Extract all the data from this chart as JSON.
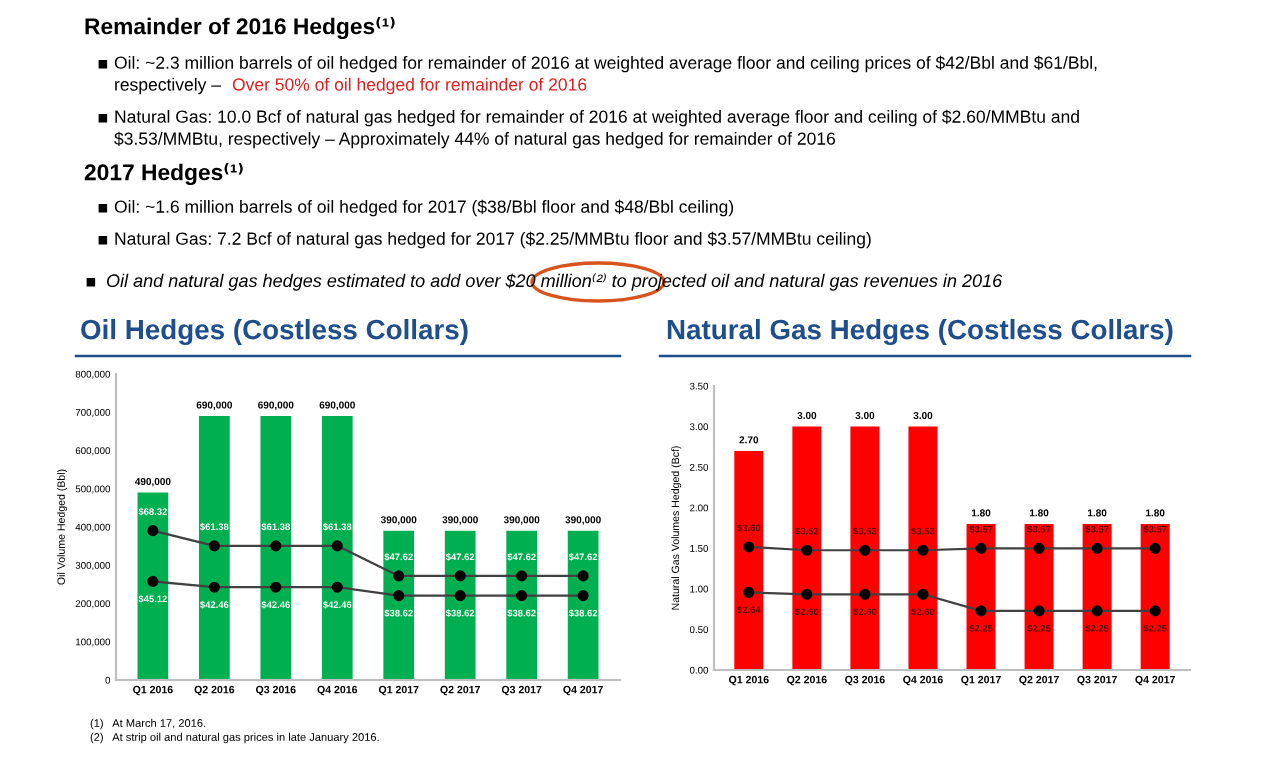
{
  "chart_data": [
    {
      "type": "other",
      "annotations": [
        "Remainder of 2016 Hedges⁽¹⁾",
        "Oil: ~2.3 million barrels of oil hedged for remainder of 2016 at weighted average floor and ceiling prices of $42/Bbl and $61/Bbl,",
        "respectively – ",
        "Over 50% of oil hedged for remainder of 2016",
        "Natural Gas: 10.0 Bcf of natural gas hedged for remainder of 2016 at weighted average floor and ceiling of $2.60/MMBtu and",
        "$3.53/MMBtu, respectively – Approximately 44% of natural gas hedged for remainder of 2016",
        "2017 Hedges⁽¹⁾",
        "Oil: ~1.6 million barrels of oil hedged for 2017 ($38/Bbl floor and $48/Bbl ceiling)",
        "Natural Gas: 7.2 Bcf of natural gas hedged for 2017 ($2.25/MMBtu floor and $3.57/MMBtu ceiling)",
        "Oil and natural gas hedges estimated to add over $20 million⁽²⁾ to projected oil and natural gas revenues in 2016"
      ]
    },
    {
      "type": "bar",
      "title": "Oil Hedges (Costless Collars)",
      "ylabel": "Oil Volume Hedged (Bbl)",
      "categories": [
        "Q1 2016",
        "Q2 2016",
        "Q3 2016",
        "Q4 2016",
        "Q1 2017",
        "Q2 2017",
        "Q3 2017",
        "Q4 2017"
      ],
      "ylim": [
        0,
        800000
      ],
      "yticks": [
        0,
        {
          "value": 100000,
          "label": "100,000"
        },
        {
          "value": 200000,
          "label": "200,000"
        },
        {
          "value": 300000,
          "label": "300,000"
        },
        {
          "value": 400000,
          "label": "400,000"
        },
        {
          "value": 500000,
          "label": "500,000"
        },
        {
          "value": 600000,
          "label": "600,000"
        },
        {
          "value": 700000,
          "label": "700,000"
        },
        {
          "value": 800000,
          "label": "800,000"
        }
      ],
      "y2lim": [
        0,
        140
      ],
      "grid": false,
      "series": [
        {
          "type": "bar",
          "color": "#00b050",
          "values": [
            490000,
            690000,
            690000,
            690000,
            390000,
            390000,
            390000,
            390000
          ],
          "value_labels": [
            "490,000",
            "690,000",
            "690,000",
            "690,000",
            "390,000",
            "390,000",
            "390,000",
            "390,000"
          ]
        },
        {
          "type": "line",
          "axis": "y2",
          "color": "#404040",
          "marker": "circle",
          "line_style": "solid",
          "values": [
            68.32,
            61.38,
            61.38,
            61.38,
            47.62,
            47.62,
            47.62,
            47.62
          ],
          "value_labels": [
            "$68.32",
            "$61.38",
            "$61.38",
            "$61.38",
            "$47.62",
            "$47.62",
            "$47.62",
            "$47.62"
          ]
        },
        {
          "type": "line",
          "axis": "y2",
          "color": "#404040",
          "marker": "circle",
          "line_style": "solid",
          "values": [
            45.12,
            42.46,
            42.46,
            42.46,
            38.62,
            38.62,
            38.62,
            38.62
          ],
          "value_labels": [
            "$45.12",
            "$42.46",
            "$42.46",
            "$42.46",
            "$38.62",
            "$38.62",
            "$38.62",
            "$38.62"
          ]
        }
      ],
      "annotations": [
        "(1)   At March 17, 2016.",
        "(2)   At strip oil and natural gas prices in late January 2016."
      ]
    },
    {
      "type": "bar",
      "title": "Natural Gas Hedges (Costless Collars)",
      "ylabel": "Natural Gas Volumes Hedged (Bcf)",
      "categories": [
        "Q1 2016",
        "Q2 2016",
        "Q3 2016",
        "Q4 2016",
        "Q1 2017",
        "Q2 2017",
        "Q3 2017",
        "Q4 2017"
      ],
      "ylim": [
        0,
        3.5
      ],
      "yticks": [
        {
          "value": 0,
          "label": "0.00"
        },
        {
          "value": 0.5,
          "label": "0.50"
        },
        {
          "value": 1,
          "label": "1.00"
        },
        {
          "value": 1.5,
          "label": "1.50"
        },
        {
          "value": 2,
          "label": "2.00"
        },
        {
          "value": 2.5,
          "label": "2.50"
        },
        {
          "value": 3,
          "label": "3.00"
        },
        {
          "value": 3.5,
          "label": "3.50"
        }
      ],
      "y2lim": [
        1.0,
        7.0
      ],
      "grid": false,
      "series": [
        {
          "type": "bar",
          "color": "#ff0000",
          "values": [
            2.7,
            3.0,
            3.0,
            3.0,
            1.8,
            1.8,
            1.8,
            1.8
          ],
          "value_labels": [
            "2.70",
            "3.00",
            "3.00",
            "3.00",
            "1.80",
            "1.80",
            "1.80",
            "1.80"
          ]
        },
        {
          "type": "line",
          "axis": "y2",
          "color": "#404040",
          "marker": "circle",
          "line_style": "solid",
          "values": [
            3.6,
            3.53,
            3.53,
            3.53,
            3.57,
            3.57,
            3.57,
            3.57
          ],
          "value_labels": [
            "$3.60",
            "$3.53",
            "$3.53",
            "$3.53",
            "$3.57",
            "$3.57",
            "$3.57",
            "$3.57"
          ]
        },
        {
          "type": "line",
          "axis": "y2",
          "color": "#404040",
          "marker": "circle",
          "line_style": "solid",
          "values": [
            2.64,
            2.6,
            2.6,
            2.6,
            2.25,
            2.25,
            2.25,
            2.25
          ],
          "value_labels": [
            "$2.64",
            "$2.60",
            "$2.60",
            "$2.60",
            "$2.25",
            "$2.25",
            "$2.25",
            "$2.25"
          ]
        }
      ]
    }
  ]
}
